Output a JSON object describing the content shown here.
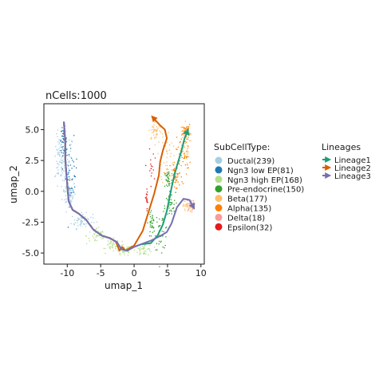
{
  "chart_data": {
    "type": "scatter",
    "title": "nCells:1000",
    "xlabel": "umap_1",
    "ylabel": "umap_2",
    "xlim": [
      -13.5,
      10.5
    ],
    "ylim": [
      -5.9,
      7.1
    ],
    "x_ticks": [
      -10,
      -5,
      0,
      5,
      10
    ],
    "x_tick_labels": [
      "-10",
      "-5",
      "0",
      "5",
      "10"
    ],
    "y_ticks": [
      -5,
      -2.5,
      0,
      2.5,
      5
    ],
    "y_tick_labels": [
      "-5.0",
      "-2.5",
      "0.0",
      "2.5",
      "5.0"
    ],
    "grid": false,
    "legend_placement": "right",
    "celltype_legend_title": "SubCellType:",
    "lineage_legend_title": "Lineages",
    "series": [
      {
        "name": "Ductal(239)",
        "color": "#a6cee3",
        "count": 239,
        "regions": [
          [
            -10.0,
            2.0,
            0.9,
            2.8
          ],
          [
            -11.2,
            2.6,
            0.7,
            1.9
          ],
          [
            -9.7,
            -0.2,
            1.0,
            1.1
          ],
          [
            -7.8,
            -2.4,
            1.6,
            0.6
          ]
        ]
      },
      {
        "name": "Ngn3 low EP(81)",
        "color": "#1f78b4",
        "count": 81,
        "regions": [
          [
            -9.4,
            1.5,
            0.9,
            2.6
          ],
          [
            -10.6,
            4.2,
            0.5,
            1.0
          ]
        ]
      },
      {
        "name": "Ngn3 high EP(168)",
        "color": "#b2df8a",
        "count": 168,
        "regions": [
          [
            -5.5,
            -3.6,
            1.6,
            0.7
          ],
          [
            -1.5,
            -4.8,
            1.3,
            0.45
          ],
          [
            -3.2,
            -4.4,
            1.0,
            0.5
          ],
          [
            1.5,
            -4.7,
            1.3,
            0.5
          ]
        ]
      },
      {
        "name": "Pre-endocrine(150)",
        "color": "#33a02c",
        "count": 150,
        "regions": [
          [
            4.1,
            -3.3,
            1.0,
            1.4
          ],
          [
            2.6,
            -2.6,
            0.5,
            1.2
          ],
          [
            5.4,
            -1.2,
            0.8,
            1.1
          ],
          [
            5.1,
            0.9,
            0.6,
            1.0
          ]
        ]
      },
      {
        "name": "Beta(177)",
        "color": "#fdbf6f",
        "count": 177,
        "regions": [
          [
            3.2,
            4.9,
            1.0,
            0.8
          ],
          [
            4.9,
            2.8,
            0.9,
            2.2
          ],
          [
            7.4,
            3.8,
            0.9,
            1.6
          ],
          [
            8.1,
            -1.2,
            0.8,
            0.5
          ]
        ]
      },
      {
        "name": "Alpha(135)",
        "color": "#ff7f00",
        "count": 135,
        "regions": [
          [
            7.4,
            3.0,
            1.0,
            2.0
          ],
          [
            6.3,
            1.2,
            0.9,
            1.2
          ],
          [
            7.8,
            4.9,
            0.6,
            0.5
          ]
        ]
      },
      {
        "name": "Delta(18)",
        "color": "#fb9a99",
        "count": 18,
        "regions": [
          [
            8.6,
            -1.1,
            0.6,
            0.4
          ]
        ]
      },
      {
        "name": "Epsilon(32)",
        "color": "#e31a1c",
        "count": 32,
        "regions": [
          [
            2.5,
            1.8,
            0.5,
            1.5
          ],
          [
            1.9,
            -0.5,
            0.3,
            0.9
          ]
        ]
      }
    ],
    "lineages": [
      {
        "name": "Lineage1",
        "color": "#1b9e77",
        "x": [
          -10.5,
          -10.3,
          -10.3,
          -10.1,
          -9.8,
          -9.2,
          -8.3,
          -7.2,
          -6.1,
          -4.8,
          -3.6,
          -2.6,
          -1.9,
          -1.0,
          0.0,
          1.0,
          2.5,
          3.5,
          4.3,
          4.9,
          5.2,
          5.6,
          6.1,
          6.6,
          7.1,
          7.5,
          8.0
        ],
        "y": [
          5.6,
          4.0,
          2.6,
          1.2,
          -0.8,
          -1.5,
          -1.8,
          -2.3,
          -3.1,
          -3.6,
          -3.8,
          -4.1,
          -4.7,
          -4.8,
          -4.5,
          -4.3,
          -4.2,
          -3.6,
          -2.7,
          -1.6,
          -0.8,
          0.3,
          1.5,
          2.4,
          3.3,
          4.2,
          4.9
        ]
      },
      {
        "name": "Lineage2",
        "color": "#d95f02",
        "x": [
          -10.5,
          -10.3,
          -10.3,
          -10.1,
          -9.8,
          -9.2,
          -8.3,
          -7.2,
          -6.1,
          -4.8,
          -3.6,
          -2.7,
          -2.2,
          -1.8,
          -1.3,
          0.0,
          1.3,
          2.2,
          3.0,
          3.7,
          3.9,
          4.3,
          4.9,
          4.6,
          3.8,
          2.8
        ],
        "y": [
          5.6,
          4.0,
          2.6,
          1.2,
          -0.8,
          -1.5,
          -1.8,
          -2.3,
          -3.1,
          -3.6,
          -3.8,
          -4.1,
          -4.8,
          -4.5,
          -4.8,
          -4.4,
          -3.2,
          -1.6,
          -0.2,
          1.3,
          2.4,
          3.3,
          4.3,
          5.0,
          5.4,
          6.0
        ]
      },
      {
        "name": "Lineage3",
        "color": "#7570b3",
        "x": [
          -10.5,
          -10.3,
          -10.3,
          -10.1,
          -9.8,
          -9.2,
          -8.3,
          -7.2,
          -6.1,
          -4.8,
          -3.6,
          -2.6,
          -1.9,
          -1.0,
          0.0,
          1.0,
          2.5,
          4.0,
          4.9,
          5.6,
          6.4,
          7.4,
          8.3,
          8.9
        ],
        "y": [
          5.6,
          4.0,
          2.6,
          1.2,
          -0.8,
          -1.5,
          -1.8,
          -2.3,
          -3.1,
          -3.6,
          -3.8,
          -4.1,
          -4.7,
          -4.8,
          -4.5,
          -4.3,
          -4.0,
          -3.6,
          -3.3,
          -2.6,
          -1.3,
          -0.6,
          -0.7,
          -1.3
        ]
      }
    ]
  }
}
